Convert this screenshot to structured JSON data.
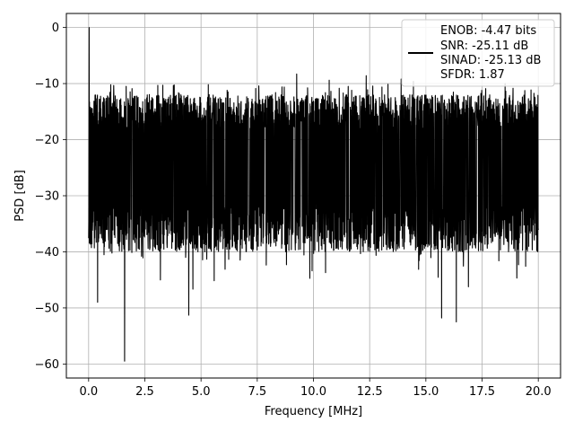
{
  "chart_data": {
    "type": "line",
    "title": "",
    "xlabel": "Frequency [MHz]",
    "ylabel": "PSD [dB]",
    "xlim": [
      -0.99,
      20.99
    ],
    "ylim": [
      -62.5,
      2.5
    ],
    "xticks": [
      0.0,
      2.5,
      5.0,
      7.5,
      10.0,
      12.5,
      15.0,
      17.5,
      20.0
    ],
    "xtick_labels": [
      "0.0",
      "2.5",
      "5.0",
      "7.5",
      "10.0",
      "12.5",
      "15.0",
      "17.5",
      "20.0"
    ],
    "yticks": [
      0,
      -10,
      -20,
      -30,
      -40,
      -50,
      -60
    ],
    "ytick_labels": [
      "0",
      "−10",
      "−20",
      "−30",
      "−40",
      "−50",
      "−60"
    ],
    "grid": true,
    "legend_position": "top-right",
    "series": [
      {
        "name": "ENOB: -4.47 bits\nSNR: -25.11 dB\nSINAD: -25.13 dB\nSFDR: 1.87",
        "color": "#000000",
        "x_range": [
          0.0,
          20.0
        ],
        "description_peaks": [
          [
            0.02,
            0.0
          ],
          [
            1.6,
            -59.5
          ],
          [
            4.45,
            -51.3
          ],
          [
            0.4,
            -49.0
          ],
          [
            15.7,
            -51.8
          ],
          [
            16.35,
            -52.5
          ]
        ],
        "band_upper": -12,
        "band_lower": -36
      }
    ],
    "legend_entries": [
      "ENOB: -4.47 bits",
      "SNR: -25.11 dB",
      "SINAD: -25.13 dB",
      "SFDR: 1.87"
    ]
  }
}
